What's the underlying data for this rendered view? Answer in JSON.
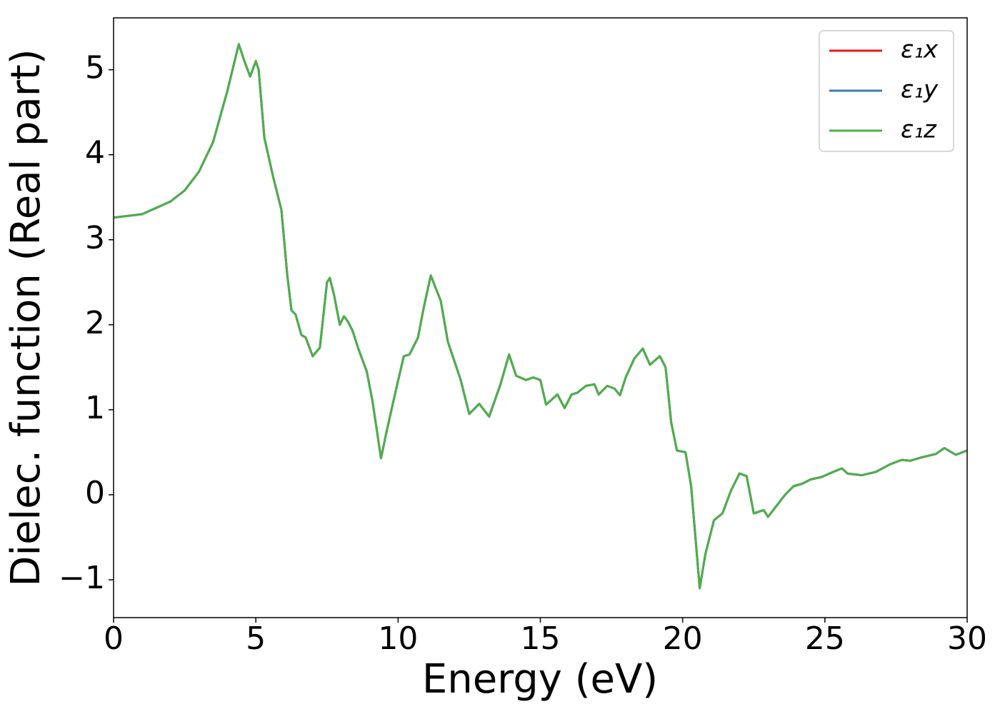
{
  "chart_data": {
    "type": "line",
    "xlabel": "Energy (eV)",
    "ylabel": "Dielec. function (Real part)",
    "x": [
      0,
      1,
      2,
      2.5,
      3,
      3.5,
      4,
      4.4,
      4.6,
      4.8,
      5.0,
      5.1,
      5.3,
      5.6,
      5.9,
      6.1,
      6.25,
      6.4,
      6.6,
      6.75,
      7.0,
      7.25,
      7.5,
      7.6,
      7.75,
      7.95,
      8.1,
      8.25,
      8.4,
      8.6,
      8.9,
      9.1,
      9.4,
      9.6,
      9.9,
      10.2,
      10.4,
      10.7,
      10.9,
      11.15,
      11.5,
      11.75,
      12.2,
      12.5,
      12.85,
      13.2,
      13.6,
      13.9,
      14.15,
      14.5,
      14.75,
      15.0,
      15.2,
      15.6,
      15.85,
      16.1,
      16.3,
      16.6,
      16.9,
      17.05,
      17.35,
      17.6,
      17.8,
      18.0,
      18.3,
      18.6,
      18.85,
      19.2,
      19.4,
      19.6,
      19.8,
      20.1,
      20.3,
      20.6,
      20.8,
      21.1,
      21.4,
      21.7,
      22.0,
      22.25,
      22.5,
      22.85,
      23.0,
      23.3,
      23.6,
      23.9,
      24.2,
      24.5,
      24.9,
      25.3,
      25.6,
      25.8,
      26.3,
      26.8,
      27.3,
      27.7,
      28.0,
      28.4,
      28.9,
      29.2,
      29.6,
      30
    ],
    "series": [
      {
        "name": "ε₁x",
        "color": "#e41a1c",
        "values": [
          3.26,
          3.3,
          3.45,
          3.58,
          3.8,
          4.15,
          4.75,
          5.3,
          5.1,
          4.92,
          5.1,
          5.0,
          4.2,
          3.75,
          3.35,
          2.6,
          2.17,
          2.12,
          1.88,
          1.85,
          1.63,
          1.73,
          2.5,
          2.55,
          2.35,
          2.0,
          2.1,
          2.03,
          1.93,
          1.72,
          1.45,
          1.1,
          0.43,
          0.75,
          1.2,
          1.63,
          1.65,
          1.85,
          2.2,
          2.58,
          2.28,
          1.8,
          1.35,
          0.95,
          1.07,
          0.92,
          1.3,
          1.65,
          1.4,
          1.35,
          1.38,
          1.35,
          1.06,
          1.18,
          1.02,
          1.18,
          1.2,
          1.28,
          1.3,
          1.18,
          1.28,
          1.25,
          1.17,
          1.38,
          1.6,
          1.72,
          1.53,
          1.63,
          1.5,
          0.85,
          0.52,
          0.5,
          0.1,
          -1.1,
          -0.7,
          -0.3,
          -0.22,
          0.05,
          0.25,
          0.22,
          -0.22,
          -0.18,
          -0.26,
          -0.13,
          0.0,
          0.1,
          0.13,
          0.18,
          0.21,
          0.27,
          0.31,
          0.25,
          0.23,
          0.27,
          0.36,
          0.41,
          0.4,
          0.44,
          0.48,
          0.55,
          0.47,
          0.52
        ]
      },
      {
        "name": "ε₁y",
        "color": "#377eb8",
        "values": [
          3.26,
          3.3,
          3.45,
          3.58,
          3.8,
          4.15,
          4.75,
          5.3,
          5.1,
          4.92,
          5.1,
          5.0,
          4.2,
          3.75,
          3.35,
          2.6,
          2.17,
          2.12,
          1.88,
          1.85,
          1.63,
          1.73,
          2.5,
          2.55,
          2.35,
          2.0,
          2.1,
          2.03,
          1.93,
          1.72,
          1.45,
          1.1,
          0.43,
          0.75,
          1.2,
          1.63,
          1.65,
          1.85,
          2.2,
          2.58,
          2.28,
          1.8,
          1.35,
          0.95,
          1.07,
          0.92,
          1.3,
          1.65,
          1.4,
          1.35,
          1.38,
          1.35,
          1.06,
          1.18,
          1.02,
          1.18,
          1.2,
          1.28,
          1.3,
          1.18,
          1.28,
          1.25,
          1.17,
          1.38,
          1.6,
          1.72,
          1.53,
          1.63,
          1.5,
          0.85,
          0.52,
          0.5,
          0.1,
          -1.1,
          -0.7,
          -0.3,
          -0.22,
          0.05,
          0.25,
          0.22,
          -0.22,
          -0.18,
          -0.26,
          -0.13,
          0.0,
          0.1,
          0.13,
          0.18,
          0.21,
          0.27,
          0.31,
          0.25,
          0.23,
          0.27,
          0.36,
          0.41,
          0.4,
          0.44,
          0.48,
          0.55,
          0.47,
          0.52
        ]
      },
      {
        "name": "ε₁z",
        "color": "#4daf4a",
        "values": [
          3.26,
          3.3,
          3.45,
          3.58,
          3.8,
          4.15,
          4.75,
          5.3,
          5.1,
          4.92,
          5.1,
          5.0,
          4.2,
          3.75,
          3.35,
          2.6,
          2.17,
          2.12,
          1.88,
          1.85,
          1.63,
          1.73,
          2.5,
          2.55,
          2.35,
          2.0,
          2.1,
          2.03,
          1.93,
          1.72,
          1.45,
          1.1,
          0.43,
          0.75,
          1.2,
          1.63,
          1.65,
          1.85,
          2.2,
          2.58,
          2.28,
          1.8,
          1.35,
          0.95,
          1.07,
          0.92,
          1.3,
          1.65,
          1.4,
          1.35,
          1.38,
          1.35,
          1.06,
          1.18,
          1.02,
          1.18,
          1.2,
          1.28,
          1.3,
          1.18,
          1.28,
          1.25,
          1.17,
          1.38,
          1.6,
          1.72,
          1.53,
          1.63,
          1.5,
          0.85,
          0.52,
          0.5,
          0.1,
          -1.1,
          -0.7,
          -0.3,
          -0.22,
          0.05,
          0.25,
          0.22,
          -0.22,
          -0.18,
          -0.26,
          -0.13,
          0.0,
          0.1,
          0.13,
          0.18,
          0.21,
          0.27,
          0.31,
          0.25,
          0.23,
          0.27,
          0.36,
          0.41,
          0.4,
          0.44,
          0.48,
          0.55,
          0.47,
          0.52
        ]
      }
    ],
    "xlim": [
      0,
      30
    ],
    "xticks": [
      0,
      5,
      10,
      15,
      20,
      25,
      30
    ],
    "ylim": [
      -1.445,
      5.61
    ],
    "yticks": [
      {
        "value": -1,
        "label": "−1"
      },
      0,
      1,
      2,
      3,
      4,
      5
    ],
    "grid": false,
    "legend": "upper right"
  }
}
